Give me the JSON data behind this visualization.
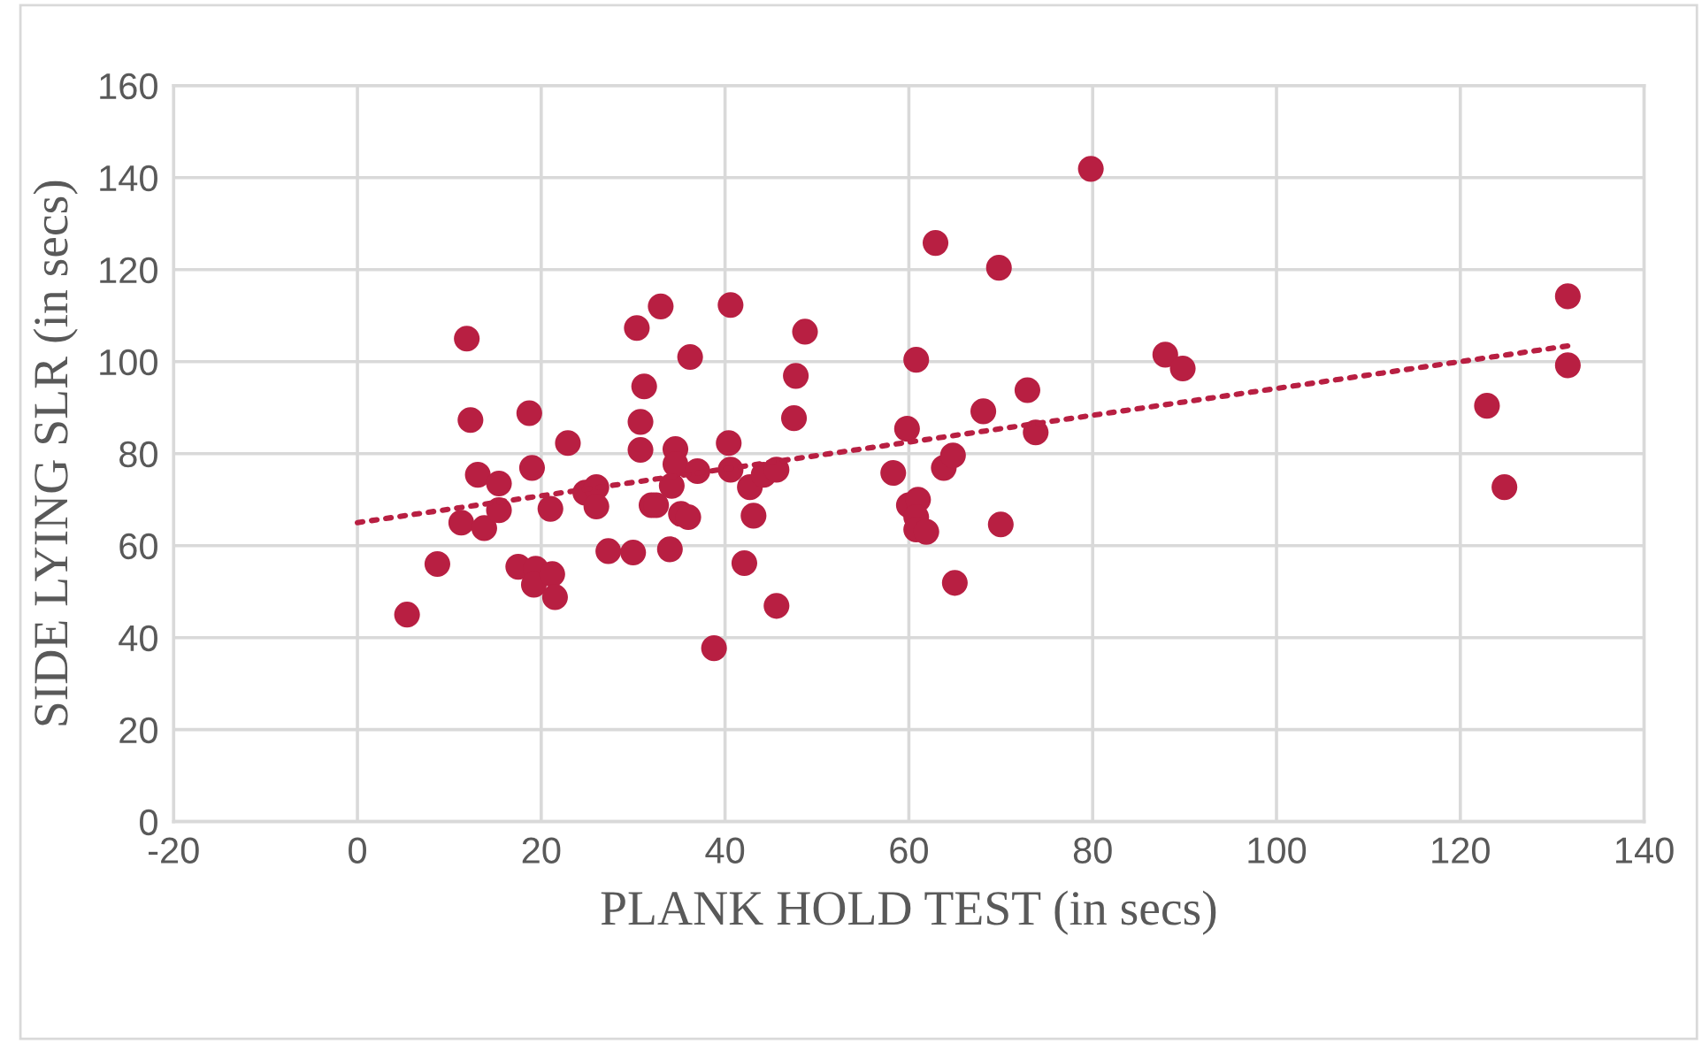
{
  "chart_data": {
    "type": "scatter",
    "xlabel": "PLANK HOLD TEST (in secs)",
    "ylabel": "SIDE LYING SLR (in secs)",
    "xlim": [
      -20,
      140
    ],
    "xticks": [
      -20,
      0,
      20,
      40,
      60,
      80,
      100,
      120,
      140
    ],
    "ylim": [
      0,
      160
    ],
    "yticks": [
      0,
      20,
      40,
      60,
      80,
      100,
      120,
      140,
      160
    ],
    "grid": true,
    "marker": "circle",
    "legend": false,
    "series": [
      {
        "color": "#b81f42",
        "x": [
          5.4,
          8.7,
          11.9,
          12.3,
          11.3,
          13.1,
          13.8,
          15.4,
          15.4,
          17.5,
          18.7,
          19.0,
          19.4,
          19.2,
          21.0,
          21.2,
          21.5,
          22.9,
          24.8,
          26.0,
          26.0,
          27.3,
          30.0,
          30.4,
          30.8,
          30.8,
          31.2,
          32.0,
          33.0,
          32.5,
          34.0,
          34.2,
          34.6,
          34.6,
          35.2,
          36.0,
          36.2,
          37.0,
          38.8,
          40.6,
          40.4,
          40.6,
          42.1,
          42.7,
          43.1,
          44.2,
          45.6,
          45.6,
          47.5,
          47.7,
          48.7,
          58.3,
          59.8,
          60.0,
          60.8,
          61.0,
          60.8,
          60.8,
          61.9,
          62.9,
          63.8,
          64.8,
          65.0,
          68.1,
          69.8,
          70.0,
          72.9,
          73.8,
          79.8,
          87.9,
          89.8,
          122.9,
          124.8,
          131.7,
          131.7
        ],
        "values": [
          45,
          56,
          105,
          87.3,
          65,
          75.4,
          63.8,
          73.5,
          67.7,
          55.4,
          88.8,
          76.9,
          55,
          51.5,
          68,
          53.8,
          48.8,
          82.3,
          71.5,
          72.7,
          68.5,
          58.8,
          58.5,
          107.3,
          86.9,
          80.8,
          94.6,
          68.8,
          112,
          68.8,
          59.2,
          73,
          81,
          77.7,
          66.9,
          66.2,
          101,
          76.2,
          37.7,
          112.3,
          82.3,
          76.5,
          56.2,
          72.7,
          66.5,
          75.4,
          76.5,
          46.9,
          87.7,
          96.9,
          106.5,
          75.8,
          85.4,
          68.8,
          100.4,
          70,
          66.2,
          63.5,
          63,
          125.8,
          76.9,
          79.6,
          51.9,
          89.2,
          120.4,
          64.6,
          93.8,
          84.6,
          141.9,
          101.5,
          98.5,
          90.4,
          72.7,
          114.2,
          99.2
        ]
      },
      {
        "type": "line",
        "color": "#b81f42",
        "line_style": "dotted",
        "marker": "none",
        "x": [
          0,
          132
        ],
        "values": [
          65,
          103.5
        ]
      }
    ]
  }
}
